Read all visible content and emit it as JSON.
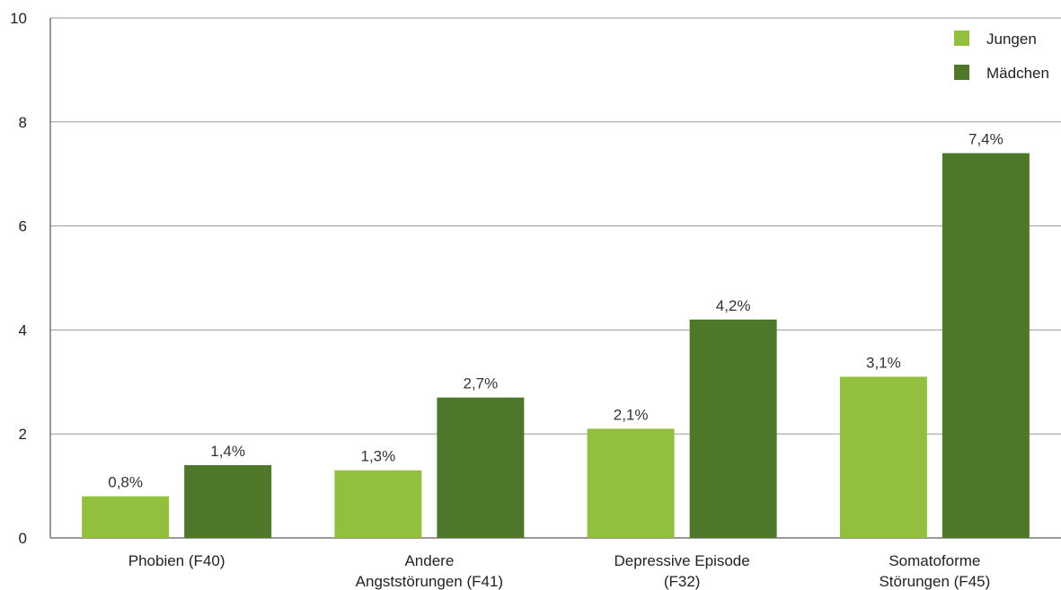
{
  "chart_data": {
    "type": "bar",
    "categories": [
      [
        "Phobien (F40)"
      ],
      [
        "Andere",
        "Angststörungen (F41)"
      ],
      [
        "Depressive Episode",
        "(F32)"
      ],
      [
        "Somatoforme",
        "Störungen (F45)"
      ]
    ],
    "series": [
      {
        "name": "Jungen",
        "values": [
          0.8,
          1.3,
          2.1,
          3.1
        ],
        "labels": [
          "0,8%",
          "1,3%",
          "2,1%",
          "3,1%"
        ],
        "color": "#93bf3e"
      },
      {
        "name": "Mädchen",
        "values": [
          1.4,
          2.7,
          4.2,
          7.4
        ],
        "labels": [
          "1,4%",
          "2,7%",
          "4,2%",
          "7,4%"
        ],
        "color": "#4e772a"
      }
    ],
    "yticks": [
      "0",
      "2",
      "4",
      "6",
      "8",
      "10"
    ],
    "ylim": [
      0,
      10
    ],
    "grid": true,
    "legend_position": "top-right",
    "title": "",
    "xlabel": "",
    "ylabel": ""
  }
}
